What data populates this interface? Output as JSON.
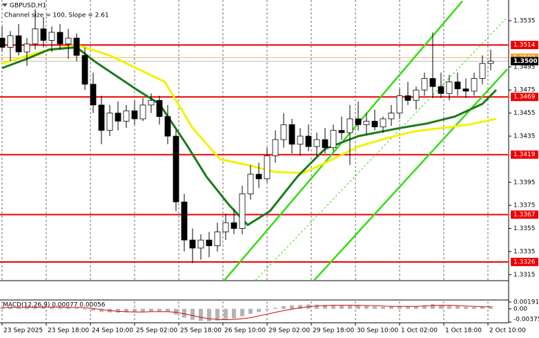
{
  "chart_data": [
    {
      "type": "candlestick",
      "title": "GBPUSD,H1",
      "subtitle": "Channel size = 100, Slope = 2.61",
      "x": [
        0,
        3,
        6,
        9,
        12,
        15,
        18,
        21,
        24,
        27,
        30,
        33,
        36,
        39,
        42,
        45,
        48,
        51,
        54,
        57,
        60,
        63,
        66,
        69,
        72,
        75,
        78,
        81,
        84,
        87,
        90,
        93,
        96,
        99,
        102,
        105,
        108,
        111,
        114,
        117,
        120,
        123,
        126,
        129,
        132,
        135,
        138,
        141,
        144,
        147,
        150,
        153,
        156,
        159,
        162,
        165,
        168,
        171,
        174,
        177
      ],
      "open": [
        1.352,
        1.3512,
        1.3522,
        1.3508,
        1.3515,
        1.3528,
        1.3518,
        1.3525,
        1.3515,
        1.352,
        1.3505,
        1.348,
        1.3462,
        1.344,
        1.3455,
        1.3448,
        1.3457,
        1.345,
        1.3462,
        1.3466,
        1.3452,
        1.3435,
        1.3378,
        1.3345,
        1.3338,
        1.3345,
        1.334,
        1.3352,
        1.336,
        1.3355,
        1.3385,
        1.3402,
        1.3398,
        1.3418,
        1.3432,
        1.3445,
        1.3428,
        1.3435,
        1.3426,
        1.3432,
        1.3425,
        1.344,
        1.3438,
        1.345,
        1.3445,
        1.3448,
        1.3443,
        1.345,
        1.3455,
        1.347,
        1.3466,
        1.3475,
        1.3485,
        1.3478,
        1.3472,
        1.3482,
        1.3476,
        1.3474,
        1.3485,
        1.3498
      ],
      "high": [
        1.353,
        1.3526,
        1.3532,
        1.352,
        1.3545,
        1.3538,
        1.353,
        1.3532,
        1.3528,
        1.3524,
        1.3512,
        1.349,
        1.347,
        1.3462,
        1.3465,
        1.3462,
        1.3466,
        1.3468,
        1.3472,
        1.347,
        1.3462,
        1.344,
        1.3385,
        1.3355,
        1.335,
        1.3352,
        1.336,
        1.3368,
        1.3372,
        1.3392,
        1.341,
        1.3412,
        1.3425,
        1.344,
        1.3455,
        1.345,
        1.3442,
        1.3445,
        1.3438,
        1.3442,
        1.3445,
        1.3452,
        1.3462,
        1.3465,
        1.3455,
        1.3458,
        1.3452,
        1.3462,
        1.3476,
        1.3482,
        1.3478,
        1.349,
        1.3525,
        1.349,
        1.3488,
        1.349,
        1.3485,
        1.349,
        1.3505,
        1.351
      ],
      "low": [
        1.3508,
        1.35,
        1.3505,
        1.3496,
        1.351,
        1.3512,
        1.3508,
        1.351,
        1.3502,
        1.35,
        1.3475,
        1.3455,
        1.3428,
        1.3435,
        1.344,
        1.3442,
        1.3445,
        1.3448,
        1.3455,
        1.3445,
        1.3428,
        1.337,
        1.3335,
        1.3325,
        1.3328,
        1.333,
        1.3335,
        1.3345,
        1.335,
        1.335,
        1.338,
        1.339,
        1.3395,
        1.3412,
        1.3425,
        1.342,
        1.3418,
        1.3422,
        1.3418,
        1.342,
        1.3422,
        1.3432,
        1.341,
        1.344,
        1.3436,
        1.344,
        1.3438,
        1.3444,
        1.345,
        1.3462,
        1.3458,
        1.347,
        1.3468,
        1.3468,
        1.3466,
        1.347,
        1.3468,
        1.347,
        1.348,
        1.3492
      ],
      "close": [
        1.3512,
        1.3522,
        1.3508,
        1.3515,
        1.3528,
        1.3518,
        1.3525,
        1.3515,
        1.352,
        1.3505,
        1.348,
        1.3462,
        1.344,
        1.3455,
        1.3448,
        1.3457,
        1.345,
        1.3462,
        1.3466,
        1.3452,
        1.3435,
        1.3378,
        1.3345,
        1.3338,
        1.3345,
        1.334,
        1.3352,
        1.336,
        1.3355,
        1.3385,
        1.3402,
        1.3398,
        1.3418,
        1.3432,
        1.3445,
        1.3428,
        1.3435,
        1.3426,
        1.3432,
        1.3425,
        1.344,
        1.3438,
        1.345,
        1.3445,
        1.3448,
        1.3443,
        1.345,
        1.3455,
        1.347,
        1.3466,
        1.3475,
        1.3485,
        1.3478,
        1.3472,
        1.3482,
        1.3476,
        1.3474,
        1.3485,
        1.3498,
        1.35
      ],
      "xlim": [
        -0.75,
        183
      ],
      "ylim": [
        1.33104,
        1.3553
      ],
      "yticks": [
        1.3535,
        1.3495,
        1.3475,
        1.3455,
        1.3435,
        1.3395,
        1.3375,
        1.3355,
        1.3335,
        1.3315
      ],
      "xticks": [
        {
          "value": 0,
          "label": "23 Sep 2025"
        },
        {
          "value": 16,
          "label": "23 Sep 18:00"
        },
        {
          "value": 32,
          "label": "24 Sep 10:00"
        },
        {
          "value": 48,
          "label": "25 Sep 02:00"
        },
        {
          "value": 64,
          "label": "25 Sep 18:00"
        },
        {
          "value": 80,
          "label": "26 Sep 10:00"
        },
        {
          "value": 96,
          "label": "29 Sep 02:00"
        },
        {
          "value": 112,
          "label": "29 Sep 18:00"
        },
        {
          "value": 128,
          "label": "30 Sep 10:00"
        },
        {
          "value": 144,
          "label": "1 Oct 02:00"
        },
        {
          "value": 160,
          "label": "1 Oct 18:00"
        },
        {
          "value": 176,
          "label": "2 Oct 10:00"
        }
      ],
      "grid": true,
      "overlays": [
        {
          "color": "#f2f200",
          "x": [
            0,
            14,
            27,
            39,
            59,
            69,
            79,
            89,
            99,
            109,
            119,
            129,
            139,
            149,
            159,
            169,
            179
          ],
          "values": [
            1.3498,
            1.3508,
            1.3514,
            1.3505,
            1.3482,
            1.3442,
            1.3415,
            1.341,
            1.3404,
            1.3403,
            1.3414,
            1.3426,
            1.3433,
            1.3439,
            1.3442,
            1.3445,
            1.345
          ]
        },
        {
          "color": "#1a7a1a",
          "x": [
            0,
            9,
            17,
            27,
            34,
            49,
            57,
            67,
            74,
            82,
            89,
            97,
            107,
            117,
            129,
            144,
            154,
            164,
            174,
            179
          ],
          "values": [
            1.3494,
            1.3502,
            1.351,
            1.3512,
            1.3499,
            1.3475,
            1.3463,
            1.3427,
            1.34,
            1.3376,
            1.3358,
            1.337,
            1.34,
            1.3424,
            1.3435,
            1.3442,
            1.3446,
            1.3452,
            1.3463,
            1.3475
          ]
        }
      ],
      "channel": [
        {
          "color": "#33dd11",
          "x": [
            80.5,
            166.75
          ],
          "values": [
            1.331,
            1.3552
          ],
          "dashed": false
        },
        {
          "color": "#33dd11",
          "x": [
            113,
            183
          ],
          "values": [
            1.331,
            1.3493
          ],
          "dashed": false
        },
        {
          "color": "#33dd11",
          "x": [
            91.75,
            183
          ],
          "values": [
            1.331,
            1.3538
          ],
          "dashed": true
        }
      ],
      "levels": [
        {
          "value": 1.3514,
          "color": "#ee0000"
        },
        {
          "value": 1.3469,
          "color": "#ee0000"
        },
        {
          "value": 1.3419,
          "color": "#ee0000"
        },
        {
          "value": 1.3367,
          "color": "#ee0000"
        },
        {
          "value": 1.3326,
          "color": "#ee0000"
        }
      ],
      "ask_level": {
        "value": 1.3503,
        "color": "#f0a030"
      },
      "price_label": {
        "value": 1.35,
        "label": "1.3500",
        "color": "#000000"
      }
    },
    {
      "type": "macd",
      "title": "MACD(12,26,9) 0.00077 0.00056",
      "x": [
        0,
        3,
        6,
        9,
        12,
        15,
        18,
        21,
        24,
        27,
        30,
        33,
        36,
        39,
        42,
        45,
        48,
        51,
        54,
        57,
        60,
        63,
        66,
        69,
        72,
        75,
        78,
        81,
        84,
        87,
        90,
        93,
        96,
        99,
        102,
        105,
        108,
        111,
        114,
        117,
        120,
        123,
        126,
        129,
        132,
        135,
        138,
        141,
        144,
        147,
        150,
        153,
        156,
        159,
        162,
        165,
        168,
        171,
        174,
        177
      ],
      "histogram": [
        0.0004,
        0.0005,
        0.0004,
        0.0004,
        0.0005,
        0.0005,
        0.0005,
        0.0004,
        0.0004,
        0.0002,
        -0.0002,
        -0.0005,
        -0.0009,
        -0.001,
        -0.0011,
        -0.001,
        -0.0009,
        -0.0008,
        -0.0007,
        -0.0007,
        -0.0009,
        -0.0016,
        -0.0025,
        -0.0031,
        -0.0034,
        -0.0035,
        -0.0033,
        -0.003,
        -0.0027,
        -0.0021,
        -0.0014,
        -0.0009,
        -0.0003,
        0.0003,
        0.0008,
        0.001,
        0.0011,
        0.0012,
        0.0012,
        0.0011,
        0.0011,
        0.001,
        0.001,
        0.0009,
        0.0008,
        0.0007,
        0.0006,
        0.0006,
        0.0007,
        0.0008,
        0.0008,
        0.001,
        0.0013,
        0.0011,
        0.0009,
        0.0008,
        0.0006,
        0.0005,
        0.0006,
        0.00077
      ],
      "signal": [
        0.0003,
        0.0004,
        0.0004,
        0.0004,
        0.0004,
        0.0005,
        0.0005,
        0.0005,
        0.0004,
        0.0004,
        0.0003,
        0.0001,
        -0.0002,
        -0.0005,
        -0.0007,
        -0.0008,
        -0.0009,
        -0.0009,
        -0.0008,
        -0.0008,
        -0.0008,
        -0.001,
        -0.0014,
        -0.0019,
        -0.0024,
        -0.0028,
        -0.003,
        -0.0031,
        -0.003,
        -0.0028,
        -0.0025,
        -0.002,
        -0.0015,
        -0.001,
        -0.0005,
        -0.0001,
        0.0003,
        0.0006,
        0.0008,
        0.0009,
        0.001,
        0.001,
        0.001,
        0.001,
        0.0009,
        0.0009,
        0.0008,
        0.0007,
        0.0007,
        0.0007,
        0.0007,
        0.0008,
        0.0009,
        0.001,
        0.001,
        0.0009,
        0.0008,
        0.0007,
        0.0006,
        0.00056
      ],
      "histogram_color": "#b4b4b4",
      "signal_color": "#dd0000",
      "xlim": [
        -0.75,
        183
      ],
      "ylim": [
        -0.00375,
        0.00191
      ],
      "yticks": [
        0.00191,
        {
          "value": 0,
          "label": "0.00"
        },
        -0.00375
      ]
    }
  ]
}
